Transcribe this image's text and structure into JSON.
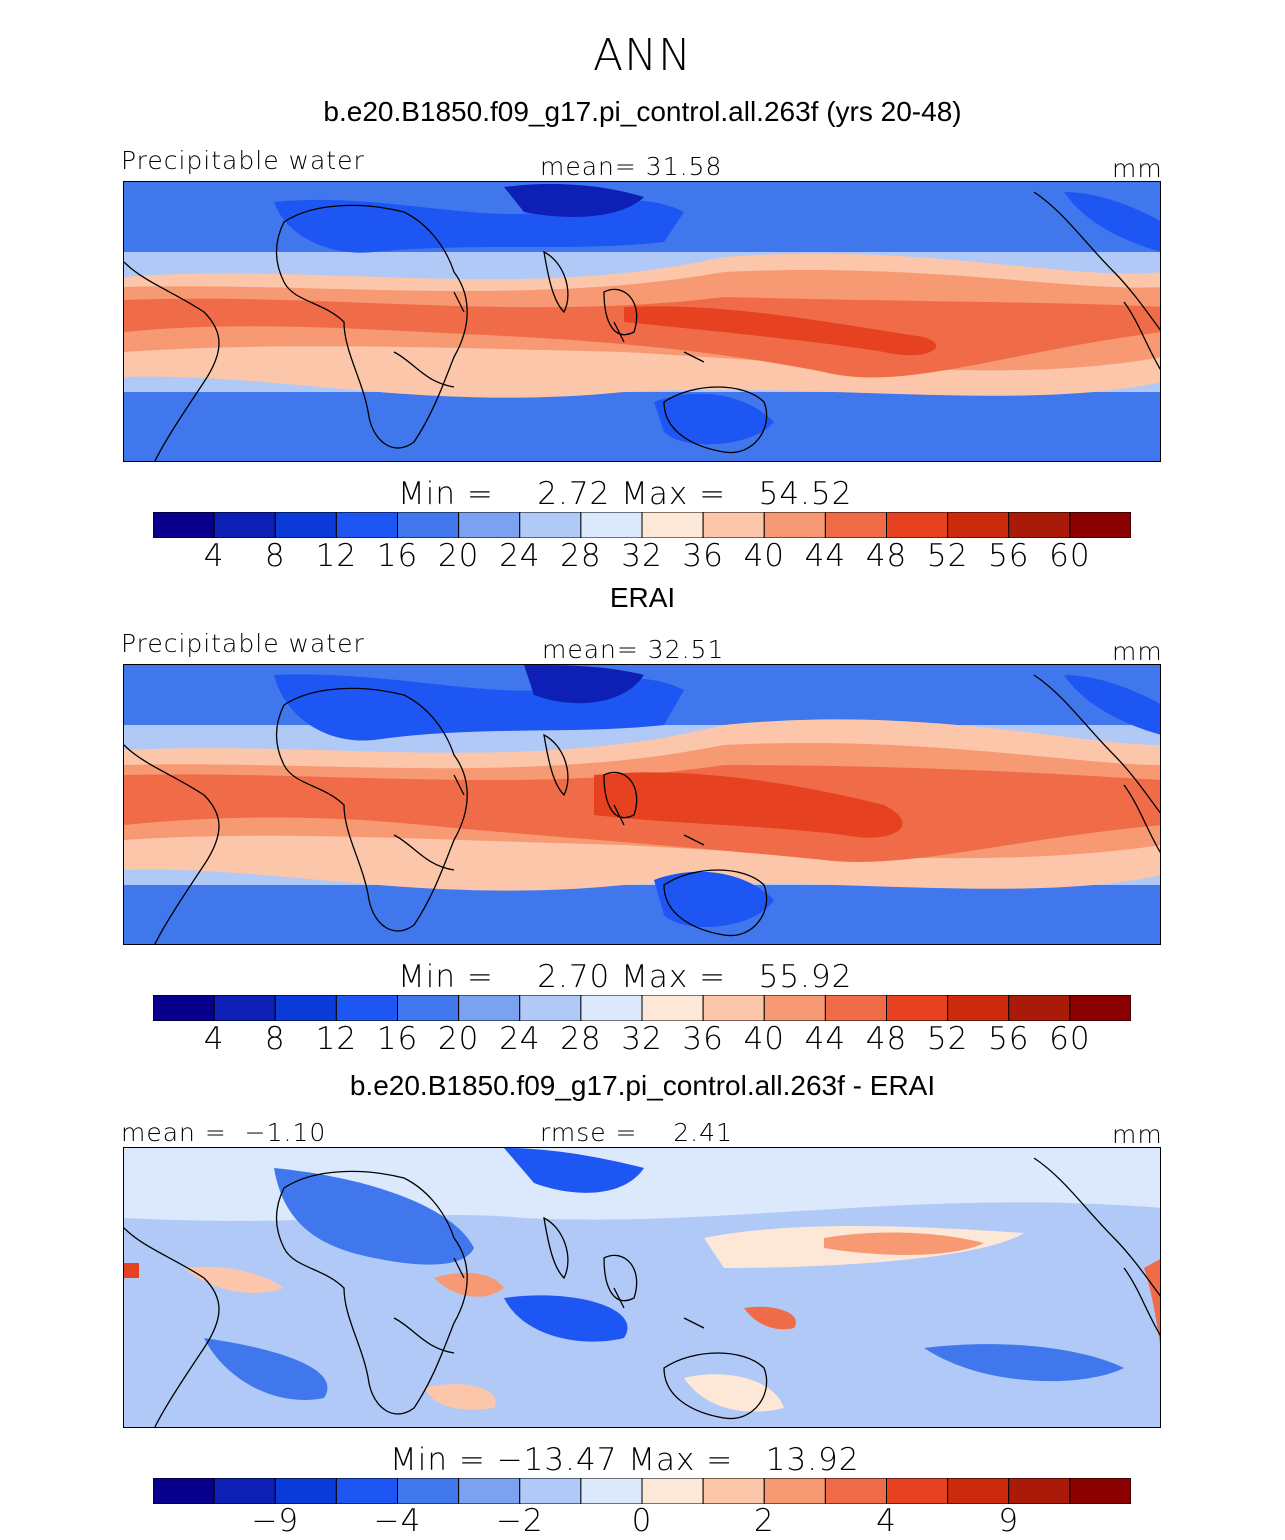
{
  "figure": {
    "season": "ANN",
    "colors": {
      "abs_palette": [
        "#08008c",
        "#0d1fb5",
        "#0a3bd8",
        "#1d56f2",
        "#4077ec",
        "#7aa2f0",
        "#b0c9f7",
        "#dce8fc",
        "#fde8d8",
        "#fbc6aa",
        "#f79a74",
        "#f06c48",
        "#e64222",
        "#cc2a0c",
        "#aa1a08",
        "#8b0000"
      ],
      "diff_palette": [
        "#08008c",
        "#0d1fb5",
        "#0a3bd8",
        "#1d56f2",
        "#4077ec",
        "#7aa2f0",
        "#b0c9f7",
        "#dce8fc",
        "#fde8d8",
        "#fbc6aa",
        "#f79a74",
        "#f06c48",
        "#e64222",
        "#cc2a0c",
        "#8b0000"
      ],
      "coastline": "#000000"
    }
  },
  "chart_data": [
    {
      "type": "heatmap",
      "title": "b.e20.B1850.f09_g17.pi_control.all.263f (yrs 20-48)",
      "left_label": "Precipitable water",
      "center_label": "mean=  31.58",
      "units": "mm",
      "stats": "Min =    2.72 Max =   54.52",
      "colorbar_levels": [
        "4",
        "8",
        "12",
        "16",
        "20",
        "24",
        "28",
        "32",
        "36",
        "40",
        "44",
        "48",
        "52",
        "56",
        "60"
      ],
      "min": 2.72,
      "max": 54.52,
      "mean": 31.58
    },
    {
      "type": "heatmap",
      "title": "ERAI",
      "left_label": "Precipitable water",
      "center_label": "mean=  32.51",
      "units": "mm",
      "stats": "Min =    2.70 Max =   55.92",
      "colorbar_levels": [
        "4",
        "8",
        "12",
        "16",
        "20",
        "24",
        "28",
        "32",
        "36",
        "40",
        "44",
        "48",
        "52",
        "56",
        "60"
      ],
      "min": 2.7,
      "max": 55.92,
      "mean": 32.51
    },
    {
      "type": "heatmap",
      "title": "b.e20.B1850.f09_g17.pi_control.all.263f - ERAI",
      "left_label": "mean =  −1.10",
      "center_label": "rmse =    2.41",
      "units": "mm",
      "stats": "Min = −13.47 Max =   13.92",
      "colorbar_levels": [
        "−9",
        "−4",
        "−2",
        "0",
        "2",
        "4",
        "9"
      ],
      "min": -13.47,
      "max": 13.92,
      "mean": -1.1,
      "rmse": 2.41
    }
  ]
}
